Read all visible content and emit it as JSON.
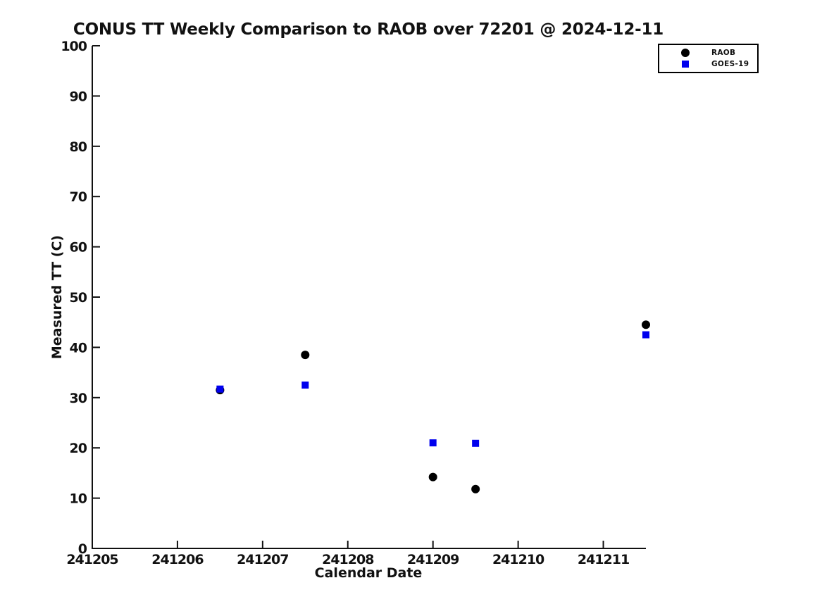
{
  "chart_data": {
    "type": "scatter",
    "title": "CONUS TT Weekly Comparison to RAOB over 72201 @ 2024-12-11",
    "xlabel": "Calendar Date",
    "ylabel": "Measured TT (C)",
    "xlim": [
      241205,
      241211.5
    ],
    "ylim": [
      0,
      100
    ],
    "x_ticks": [
      "241205",
      "241206",
      "241207",
      "241208",
      "241209",
      "241210",
      "241211"
    ],
    "x_tick_values": [
      241205,
      241206,
      241207,
      241208,
      241209,
      241210,
      241211
    ],
    "y_ticks": [
      "0",
      "10",
      "20",
      "30",
      "40",
      "50",
      "60",
      "70",
      "80",
      "90",
      "100"
    ],
    "y_tick_values": [
      0,
      10,
      20,
      30,
      40,
      50,
      60,
      70,
      80,
      90,
      100
    ],
    "grid": false,
    "tick_direction": "in",
    "legend_position": "top-right",
    "axis_color": "#111111",
    "series": [
      {
        "name": "RAOB",
        "marker": "circle",
        "color": "#000000",
        "points": [
          [
            241206.5,
            31.5
          ],
          [
            241207.5,
            38.5
          ],
          [
            241209.0,
            14.2
          ],
          [
            241209.5,
            11.8
          ],
          [
            241211.5,
            44.5
          ]
        ]
      },
      {
        "name": "GOES-19",
        "marker": "square",
        "color": "#0000ee",
        "points": [
          [
            241206.5,
            31.7
          ],
          [
            241207.5,
            32.5
          ],
          [
            241209.0,
            21.0
          ],
          [
            241209.5,
            20.9
          ],
          [
            241211.5,
            42.5
          ]
        ]
      }
    ]
  }
}
